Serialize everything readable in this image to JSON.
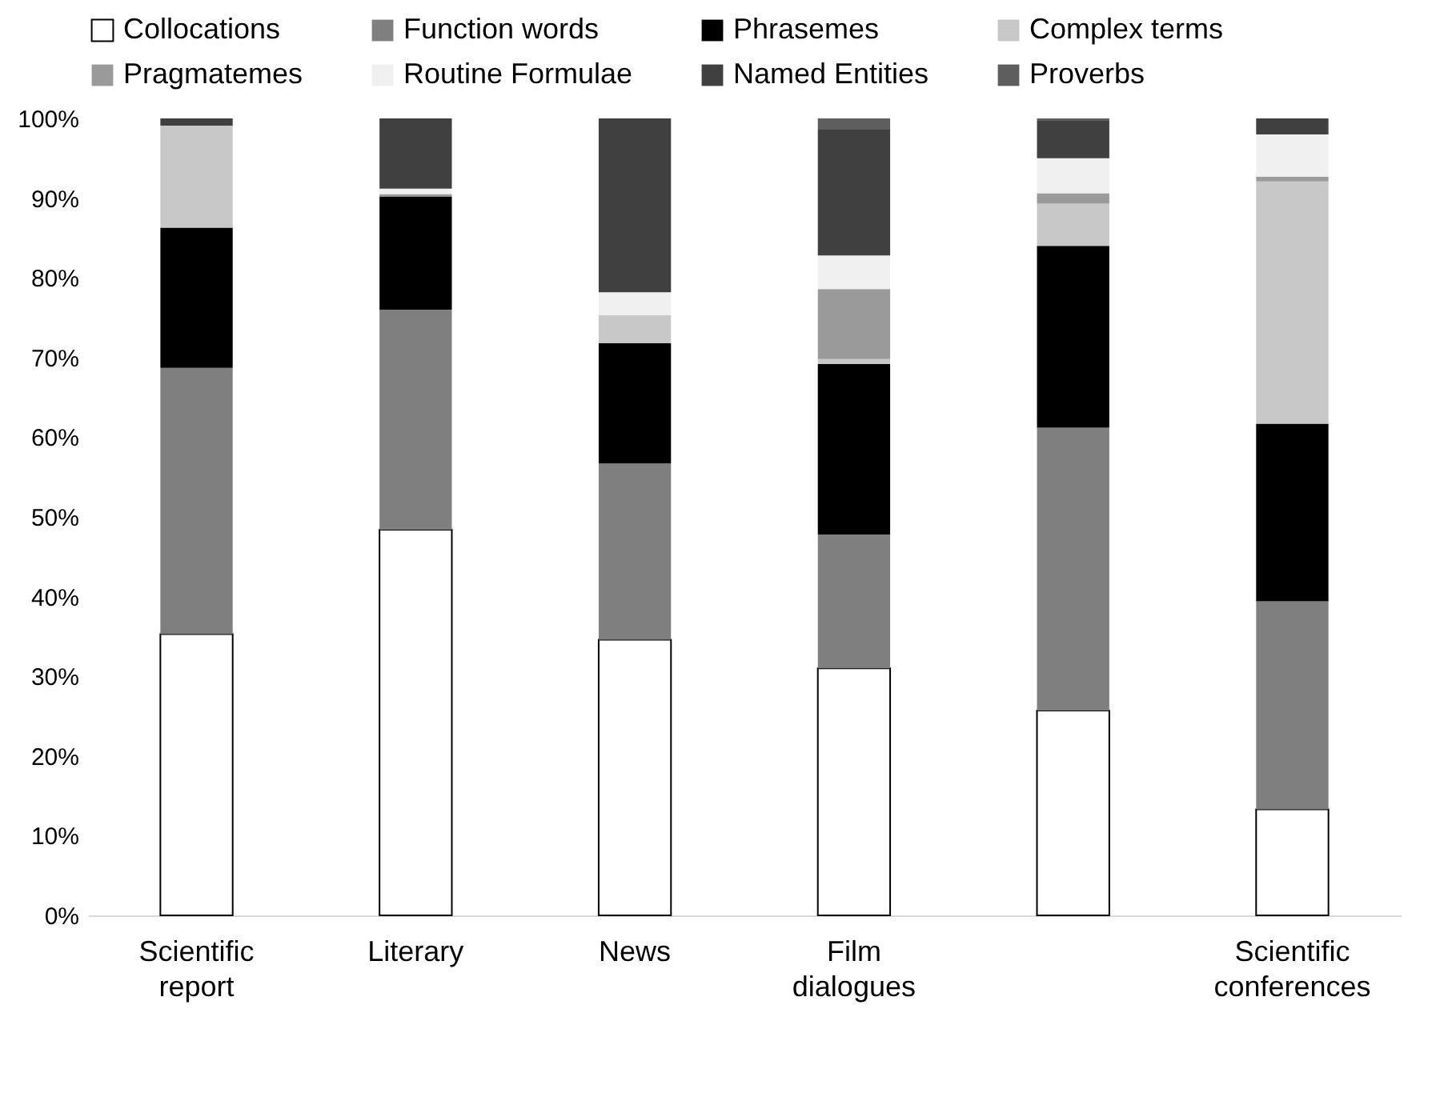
{
  "chart_data": {
    "type": "bar",
    "stacked": true,
    "categories": [
      "Scientific report",
      "Literary",
      "News",
      "Film dialogues",
      null,
      "Scientific conferences"
    ],
    "ylim": [
      0,
      100
    ],
    "yticks": [
      {
        "value": 0,
        "label": "0%"
      },
      {
        "value": 10,
        "label": "10%"
      },
      {
        "value": 20,
        "label": "20%"
      },
      {
        "value": 30,
        "label": "30%"
      },
      {
        "value": 40,
        "label": "40%"
      },
      {
        "value": 50,
        "label": "50%"
      },
      {
        "value": 60,
        "label": "60%"
      },
      {
        "value": 70,
        "label": "70%"
      },
      {
        "value": 80,
        "label": "80%"
      },
      {
        "value": 90,
        "label": "90%"
      },
      {
        "value": 100,
        "label": "100%"
      }
    ],
    "grid": false,
    "legend": "top",
    "series": [
      {
        "name": "Collocations",
        "color": "#ffffff",
        "values": [
          35.3,
          48.4,
          34.6,
          31.0,
          25.7,
          13.3
        ]
      },
      {
        "name": "Function words",
        "color": "#7f7f7f",
        "values": [
          33.4,
          27.6,
          22.1,
          16.8,
          35.5,
          26.1
        ]
      },
      {
        "name": "Phrasemes",
        "color": "#000000",
        "values": [
          17.6,
          14.2,
          15.1,
          21.4,
          22.8,
          22.3
        ]
      },
      {
        "name": "Complex terms",
        "color": "#c8c8c8",
        "values": [
          12.8,
          0,
          3.5,
          0.6,
          5.3,
          30.4
        ]
      },
      {
        "name": "Pragmatemes",
        "color": "#9a9a9a",
        "values": [
          0,
          0.3,
          0,
          8.8,
          1.3,
          0.6
        ]
      },
      {
        "name": "Routine Formulae",
        "color": "#f0f0f0",
        "values": [
          null,
          0.7,
          2.9,
          4.2,
          4.4,
          5.3
        ]
      },
      {
        "name": "Named Entities",
        "color": "#404040",
        "values": [
          0.9,
          8.8,
          21.8,
          15.8,
          4.7,
          2.0
        ]
      },
      {
        "name": "Proverbs",
        "color": "#5e5e5e",
        "values": [
          0,
          0,
          0,
          1.4,
          0.3,
          0
        ]
      }
    ]
  }
}
